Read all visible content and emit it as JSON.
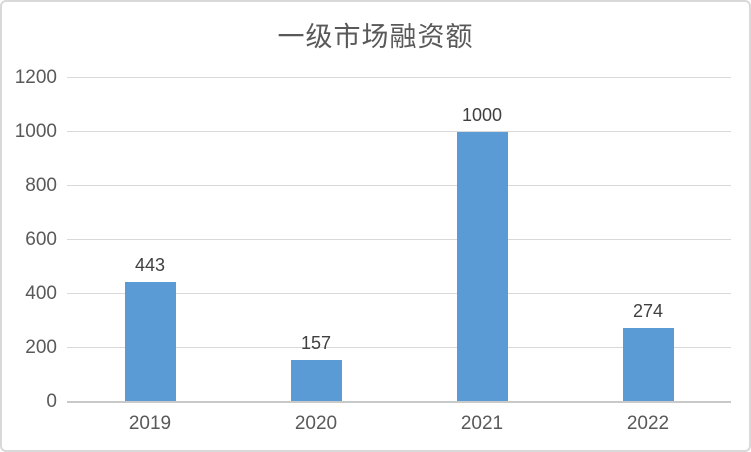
{
  "chart_data": {
    "type": "bar",
    "title": "一级市场融资额",
    "categories": [
      "2019",
      "2020",
      "2021",
      "2022"
    ],
    "values": [
      443,
      157,
      1000,
      274
    ],
    "data_labels": [
      "443",
      "157",
      "1000",
      "274"
    ],
    "ylim": [
      0,
      1200
    ],
    "yticks": [
      0,
      200,
      400,
      600,
      800,
      1000,
      1200
    ],
    "ytick_labels": [
      "0",
      "200",
      "400",
      "600",
      "800",
      "1000",
      "1200"
    ],
    "xlabel": "",
    "ylabel": "",
    "legend": "none",
    "grid": "horizontal",
    "colors": {
      "bar_fill": "#5B9BD5",
      "gridline": "#D9D9D9",
      "axis_line": "#C9C9C9",
      "title_text": "#595959",
      "tick_text": "#595959",
      "data_label_text": "#404040",
      "frame_border": "#D9D9D9",
      "background": "#FFFFFF"
    }
  }
}
